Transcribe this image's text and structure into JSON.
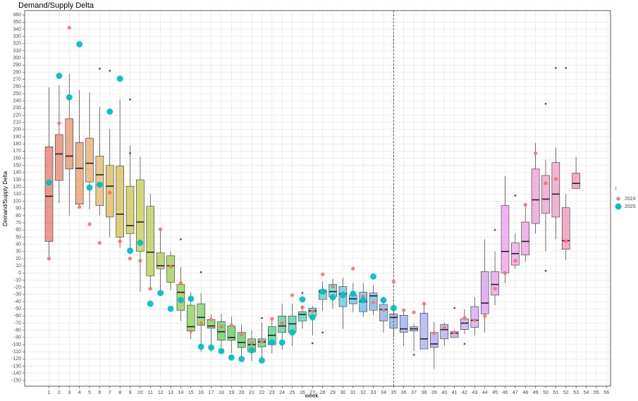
{
  "chart_data": {
    "type": "boxplot",
    "title": "Demand/Supply Delta",
    "x_label": "week",
    "y_label": "Demand/Supply Delta",
    "legend_title": "l",
    "legend_position": "right",
    "grid": true,
    "xlim": [
      -1.4,
      56.4
    ],
    "xticks": [
      1,
      2,
      3,
      4,
      5,
      6,
      7,
      8,
      9,
      10,
      11,
      12,
      13,
      14,
      15,
      16,
      17,
      18,
      19,
      20,
      21,
      22,
      23,
      24,
      25,
      26,
      27,
      28,
      29,
      30,
      31,
      32,
      33,
      34,
      35,
      36,
      37,
      38,
      39,
      40,
      41,
      42,
      43,
      44,
      45,
      46,
      47,
      48,
      49,
      50,
      51,
      52,
      53,
      54,
      55,
      56
    ],
    "ylim": [
      -158,
      366
    ],
    "yticks": [
      -150,
      -140,
      -130,
      -120,
      -110,
      -100,
      -90,
      -80,
      -70,
      -60,
      -50,
      -40,
      -30,
      -20,
      -10,
      0,
      10,
      20,
      30,
      40,
      50,
      60,
      70,
      80,
      90,
      100,
      110,
      120,
      130,
      140,
      150,
      160,
      170,
      180,
      190,
      200,
      210,
      220,
      230,
      240,
      250,
      260,
      270,
      280,
      290,
      300,
      310,
      320,
      330,
      340,
      350,
      360
    ],
    "vline": 35,
    "boxes": [
      {
        "week": 1,
        "low": 19,
        "q1": 44,
        "median": 107,
        "q3": 176,
        "high": 259,
        "color": "hsl(5,70%,70%)"
      },
      {
        "week": 2,
        "low": 97,
        "q1": 129,
        "median": 166,
        "q3": 193,
        "high": 262,
        "color": "hsl(11,70%,70%)"
      },
      {
        "week": 3,
        "low": 80,
        "q1": 145,
        "median": 163,
        "q3": 215,
        "high": 278,
        "color": "hsl(18,70%,70%)"
      },
      {
        "week": 4,
        "low": 90,
        "q1": 96,
        "median": 146,
        "q3": 182,
        "high": 255,
        "color": "hsl(24,70%,70%)"
      },
      {
        "week": 5,
        "low": 89,
        "q1": 127,
        "median": 153,
        "q3": 188,
        "high": 252,
        "color": "hsl(31,70%,70%)"
      },
      {
        "week": 6,
        "low": 80,
        "q1": 94,
        "median": 137,
        "q3": 163,
        "high": 232,
        "color": "hsl(37,70%,70%)",
        "outliers": [
          285
        ]
      },
      {
        "week": 7,
        "low": 50,
        "q1": 78,
        "median": 121,
        "q3": 150,
        "high": 201,
        "color": "hsl(43,65%,65%)",
        "outliers": [
          282
        ]
      },
      {
        "week": 8,
        "low": 35,
        "q1": 50,
        "median": 82,
        "q3": 149,
        "high": 242,
        "color": "hsl(50,60%,62%)"
      },
      {
        "week": 9,
        "low": 26,
        "q1": 55,
        "median": 66,
        "q3": 121,
        "high": 178,
        "color": "hsl(56,55%,60%)",
        "outliers": [
          242,
          167
        ]
      },
      {
        "week": 10,
        "low": -26,
        "q1": 30,
        "median": 71,
        "q3": 130,
        "high": 162,
        "color": "hsl(63,55%,60%)"
      },
      {
        "week": 11,
        "low": -24,
        "q1": -4,
        "median": 29,
        "q3": 93,
        "high": 110,
        "color": "hsl(69,55%,60%)"
      },
      {
        "week": 12,
        "low": -24,
        "q1": 6,
        "median": 10,
        "q3": 28,
        "high": 62,
        "color": "hsl(75,55%,60%)"
      },
      {
        "week": 13,
        "low": -24,
        "q1": -13,
        "median": 10,
        "q3": 24,
        "high": 30,
        "color": "hsl(82,55%,60%)"
      },
      {
        "week": 14,
        "low": -67,
        "q1": -52,
        "median": -27,
        "q3": -16,
        "high": 8,
        "color": "hsl(88,55%,60%)",
        "outliers": [
          47
        ]
      },
      {
        "week": 15,
        "low": -92,
        "q1": -81,
        "median": -75,
        "q3": -45,
        "high": -27,
        "color": "hsl(95,55%,62%)"
      },
      {
        "week": 16,
        "low": -110,
        "q1": -73,
        "median": -62,
        "q3": -43,
        "high": -28,
        "color": "hsl(101,55%,62%)",
        "outliers": [
          1
        ]
      },
      {
        "week": 17,
        "low": -110,
        "q1": -77,
        "median": -74,
        "q3": -65,
        "high": -58,
        "color": "hsl(107,55%,62%)"
      },
      {
        "week": 18,
        "low": -109,
        "q1": -94,
        "median": -82,
        "q3": -68,
        "high": -57,
        "color": "hsl(114,55%,62%)"
      },
      {
        "week": 19,
        "low": -112,
        "q1": -94,
        "median": -90,
        "q3": -74,
        "high": -61,
        "color": "hsl(120,55%,62%)"
      },
      {
        "week": 20,
        "low": -117,
        "q1": -104,
        "median": -97,
        "q3": -83,
        "high": -72,
        "color": "hsl(127,55%,62%)"
      },
      {
        "week": 21,
        "low": -123,
        "q1": -110,
        "median": -100,
        "q3": -92,
        "high": -80,
        "color": "hsl(133,55%,62%)"
      },
      {
        "week": 22,
        "low": -122,
        "q1": -103,
        "median": -96,
        "q3": -92,
        "high": -69,
        "color": "hsl(139,55%,62%)",
        "outliers": [
          -63
        ]
      },
      {
        "week": 23,
        "low": -112,
        "q1": -100,
        "median": -87,
        "q3": -75,
        "high": -63,
        "color": "hsl(146,55%,62%)"
      },
      {
        "week": 24,
        "low": -107,
        "q1": -83,
        "median": -74,
        "q3": -60,
        "high": -43,
        "color": "hsl(152,55%,62%)"
      },
      {
        "week": 25,
        "low": -102,
        "q1": -83,
        "median": -71,
        "q3": -60,
        "high": -43,
        "color": "hsl(159,55%,62%)"
      },
      {
        "week": 26,
        "low": -78,
        "q1": -67,
        "median": -58,
        "q3": -54,
        "high": -45,
        "color": "hsl(165,55%,62%)",
        "outliers": [
          -28
        ]
      },
      {
        "week": 27,
        "low": -87,
        "q1": -60,
        "median": -53,
        "q3": -49,
        "high": -46,
        "color": "hsl(171,55%,62%)",
        "outliers": [
          -98
        ]
      },
      {
        "week": 28,
        "low": -53,
        "q1": -37,
        "median": -26,
        "q3": -24,
        "high": -12,
        "color": "hsl(178,55%,62%)",
        "outliers": [
          -83
        ]
      },
      {
        "week": 29,
        "low": -50,
        "q1": -33,
        "median": -26,
        "q3": -16,
        "high": -8,
        "color": "hsl(184,60%,64%)"
      },
      {
        "week": 30,
        "low": -78,
        "q1": -47,
        "median": -29,
        "q3": -19,
        "high": -7,
        "color": "hsl(191,65%,66%)"
      },
      {
        "week": 31,
        "low": -55,
        "q1": -43,
        "median": -36,
        "q3": -31,
        "high": -14,
        "color": "hsl(197,70%,68%)"
      },
      {
        "week": 32,
        "low": -61,
        "q1": -54,
        "median": -40,
        "q3": -27,
        "high": -14,
        "color": "hsl(203,70%,70%)"
      },
      {
        "week": 33,
        "low": -59,
        "q1": -52,
        "median": -32,
        "q3": -28,
        "high": -17,
        "color": "hsl(207,70%,72%)"
      },
      {
        "week": 34,
        "low": -83,
        "q1": -67,
        "median": -51,
        "q3": -44,
        "high": -33,
        "color": "hsl(211,70%,74%)"
      },
      {
        "week": 35,
        "low": -90,
        "q1": -77,
        "median": -62,
        "q3": -57,
        "high": -49,
        "color": "hsl(216,70%,76%)"
      },
      {
        "week": 36,
        "low": -102,
        "q1": -83,
        "median": -78,
        "q3": -59,
        "high": -51,
        "color": "hsl(222,70%,78%)"
      },
      {
        "week": 37,
        "low": -109,
        "q1": -81,
        "median": -78,
        "q3": -75,
        "high": -71,
        "color": "hsl(229,70%,80%)",
        "outliers": [
          -114
        ]
      },
      {
        "week": 38,
        "low": -106,
        "q1": -106,
        "median": -92,
        "q3": -56,
        "high": -43,
        "color": "hsl(235,70%,82%)"
      },
      {
        "week": 39,
        "low": -134,
        "q1": -104,
        "median": -99,
        "q3": -83,
        "high": -68,
        "color": "hsl(242,70%,82%)"
      },
      {
        "week": 40,
        "low": -102,
        "q1": -92,
        "median": -79,
        "q3": -72,
        "high": -69,
        "color": "hsl(250,70%,82%)"
      },
      {
        "week": 41,
        "low": -90,
        "q1": -90,
        "median": -84,
        "q3": -82,
        "high": -80,
        "color": "hsl(258,70%,82%)",
        "outliers": [
          -49
        ]
      },
      {
        "week": 42,
        "low": -85,
        "q1": -79,
        "median": -70,
        "q3": -64,
        "high": -51,
        "color": "hsl(266,70%,82%)",
        "outliers": [
          -99
        ]
      },
      {
        "week": 43,
        "low": -87,
        "q1": -76,
        "median": -66,
        "q3": -47,
        "high": -34,
        "color": "hsl(274,70%,82%)"
      },
      {
        "week": 44,
        "low": -83,
        "q1": -57,
        "median": -42,
        "q3": 2,
        "high": 47,
        "color": "hsl(282,70%,80%)"
      },
      {
        "week": 45,
        "low": -45,
        "q1": -31,
        "median": -16,
        "q3": 2,
        "high": 30,
        "color": "hsl(290,70%,80%)",
        "outliers": [
          60
        ]
      },
      {
        "week": 46,
        "low": -14,
        "q1": 0,
        "median": 30,
        "q3": 94,
        "high": 135,
        "color": "hsl(298,70%,80%)"
      },
      {
        "week": 47,
        "low": 6,
        "q1": 11,
        "median": 27,
        "q3": 42,
        "high": 55,
        "color": "hsl(305,70%,80%)",
        "outliers": [
          108
        ]
      },
      {
        "week": 48,
        "low": 16,
        "q1": 25,
        "median": 44,
        "q3": 71,
        "high": 96,
        "color": "hsl(311,70%,80%)"
      },
      {
        "week": 49,
        "low": 55,
        "q1": 69,
        "median": 102,
        "q3": 145,
        "high": 181,
        "color": "hsl(317,70%,80%)"
      },
      {
        "week": 50,
        "low": 30,
        "q1": 83,
        "median": 103,
        "q3": 136,
        "high": 158,
        "color": "hsl(323,70%,80%)",
        "outliers": [
          236,
          3
        ]
      },
      {
        "week": 51,
        "low": 47,
        "q1": 78,
        "median": 110,
        "q3": 154,
        "high": 175,
        "color": "hsl(329,70%,80%)",
        "outliers": [
          286
        ]
      },
      {
        "week": 52,
        "low": 18,
        "q1": 33,
        "median": 45,
        "q3": 91,
        "high": 110,
        "color": "hsl(335,70%,78%)",
        "outliers": [
          286
        ]
      },
      {
        "week": 53,
        "low": 118,
        "q1": 118,
        "median": 125,
        "q3": 139,
        "high": 162,
        "color": "hsl(341,70%,78%)"
      }
    ],
    "outlier_color": "#555555",
    "series": [
      {
        "name": "2024",
        "color": "#F8766D",
        "x": [
          1,
          2,
          3,
          4,
          5,
          6,
          7,
          8,
          9,
          10,
          11,
          12,
          13,
          14,
          15,
          16,
          17,
          18,
          19,
          20,
          21,
          22,
          23,
          24,
          25,
          26,
          27,
          28,
          29,
          30,
          31,
          32,
          33,
          34,
          35,
          36,
          37,
          38,
          39,
          40,
          41,
          42,
          43,
          44,
          45,
          46,
          47,
          48,
          49,
          50,
          51,
          52
        ],
        "values": [
          20,
          209,
          342,
          92,
          68,
          42,
          112,
          44,
          20,
          17,
          -22,
          61,
          9,
          -14,
          -81,
          -70,
          -65,
          -75,
          -73,
          -86,
          -98,
          -96,
          -64,
          -70,
          -31,
          -48,
          -53,
          -2,
          -19,
          -28,
          6,
          -33,
          -41,
          -52,
          -12,
          -52,
          -55,
          -43,
          -84,
          -76,
          -83,
          -63,
          -66,
          -60,
          -22,
          0,
          17,
          95,
          167,
          125,
          131,
          44
        ]
      },
      {
        "name": "2025",
        "color": "#00BFC4",
        "x": [
          1,
          2,
          3,
          4,
          5,
          6,
          7,
          8,
          9,
          10,
          11,
          12,
          13,
          14,
          15,
          16,
          17,
          18,
          19,
          20,
          21,
          22,
          23,
          24,
          25,
          26,
          27,
          28,
          29,
          30,
          31,
          32,
          33,
          34,
          35
        ],
        "values": [
          126,
          275,
          245,
          319,
          119,
          123,
          225,
          271,
          31,
          42,
          -43,
          -28,
          -50,
          -38,
          -36,
          -103,
          -104,
          -109,
          -118,
          -120,
          -108,
          -122,
          -97,
          -97,
          -83,
          -37,
          -62,
          -26,
          -34,
          -31,
          -29,
          -38,
          -5,
          -38,
          -49
        ]
      }
    ]
  }
}
